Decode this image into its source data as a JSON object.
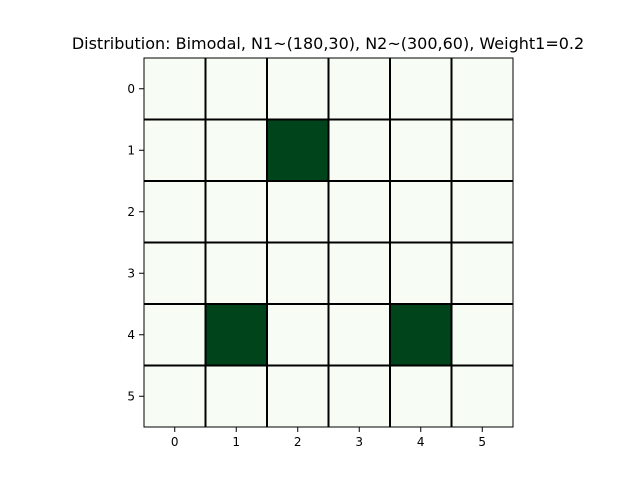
{
  "chart_data": {
    "type": "heatmap",
    "title": "Distribution: Bimodal, N1~(180,30), N2~(300,60), Weight1=0.2",
    "xlabel": "",
    "ylabel": "",
    "x_ticks": [
      "0",
      "1",
      "2",
      "3",
      "4",
      "5"
    ],
    "y_ticks": [
      "0",
      "1",
      "2",
      "3",
      "4",
      "5"
    ],
    "xlim": [
      -0.5,
      5.5
    ],
    "ylim": [
      5.5,
      -0.5
    ],
    "grid": true,
    "colormap": "Greens",
    "colors": {
      "low": "#f7fcf5",
      "high": "#00441b",
      "grid_line": "#000000"
    },
    "values": [
      [
        0,
        0,
        0,
        0,
        0,
        0
      ],
      [
        0,
        0,
        1,
        0,
        0,
        0
      ],
      [
        0,
        0,
        0,
        0,
        0,
        0
      ],
      [
        0,
        0,
        0,
        0,
        0,
        0
      ],
      [
        0,
        1,
        0,
        0,
        1,
        0
      ],
      [
        0,
        0,
        0,
        0,
        0,
        0
      ]
    ]
  }
}
